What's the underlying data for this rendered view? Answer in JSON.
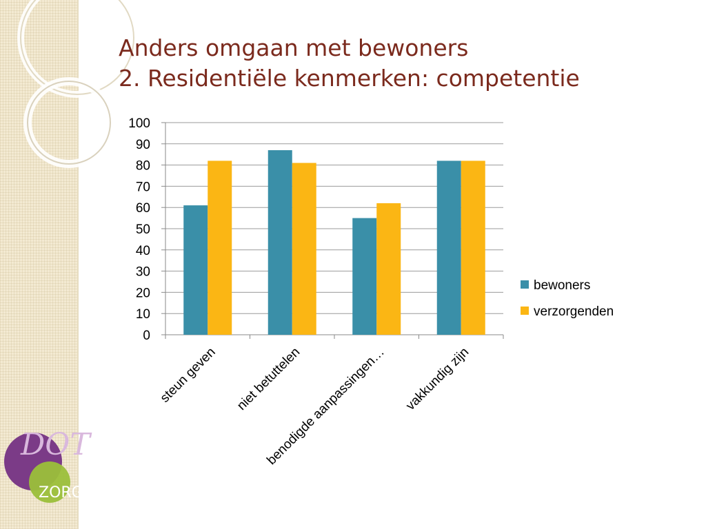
{
  "slide": {
    "title_line1": "Anders omgaan met bewoners",
    "title_line2": "2. Residentiële kenmerken: competentie"
  },
  "logo": {
    "text_top": "DOT",
    "text_bottom": "ZORG",
    "colors": {
      "purple": "#7b3b87",
      "green": "#9bbf3a",
      "text": "#8a4a92"
    }
  },
  "chart_data": {
    "type": "bar",
    "categories": [
      "steun geven",
      "niet betuttelen",
      "benodigde aanpassingen…",
      "vakkundig zijn"
    ],
    "series": [
      {
        "name": "bewoners",
        "color": "#3a8fa8",
        "values": [
          61,
          87,
          55,
          82
        ]
      },
      {
        "name": "verzorgenden",
        "color": "#fbb614",
        "values": [
          82,
          81,
          62,
          82
        ]
      }
    ],
    "yticks": [
      0,
      10,
      20,
      30,
      40,
      50,
      60,
      70,
      80,
      90,
      100
    ],
    "ylim": [
      0,
      100
    ],
    "grid": true,
    "legend": "right"
  }
}
